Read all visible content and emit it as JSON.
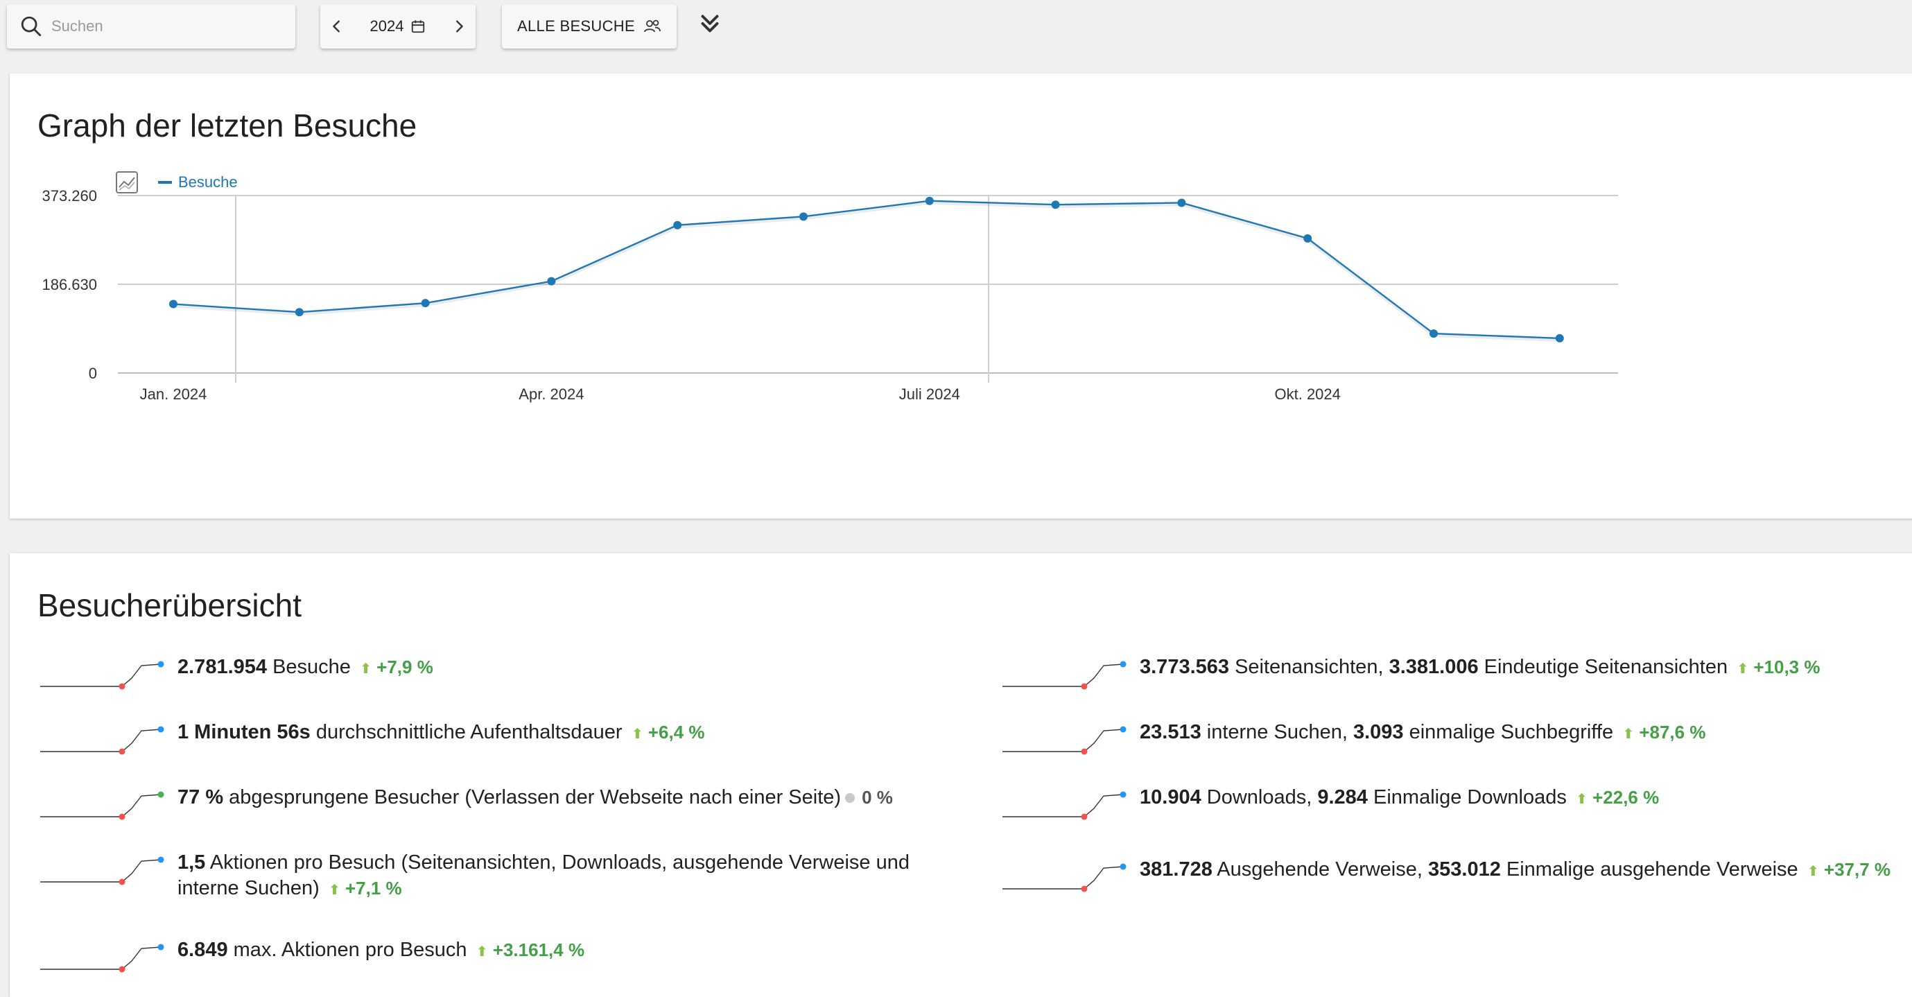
{
  "toolbar": {
    "search_placeholder": "Suchen",
    "year": "2024",
    "segment_label": "ALLE BESUCHE"
  },
  "graph": {
    "title": "Graph der letzten Besuche",
    "legend_label": "Besuche"
  },
  "chart_data": {
    "type": "line",
    "title": "Graph der letzten Besuche",
    "xlabel": "",
    "ylabel": "",
    "y_ticks": [
      "373.260",
      "186.630",
      "0"
    ],
    "ylim": [
      0,
      373260
    ],
    "x_tick_labels": [
      "Jan. 2024",
      "Apr. 2024",
      "Juli 2024",
      "Okt. 2024"
    ],
    "x": [
      "2024-01",
      "2024-02",
      "2024-03",
      "2024-04",
      "2024-05",
      "2024-06",
      "2024-07",
      "2024-08",
      "2024-09",
      "2024-10",
      "2024-11",
      "2024-12"
    ],
    "series": [
      {
        "name": "Besuche",
        "color": "#1f78b4",
        "values": [
          145000,
          128000,
          147000,
          193000,
          311000,
          329000,
          362000,
          354000,
          358000,
          283000,
          83000,
          73000
        ]
      }
    ],
    "grid": true,
    "legend": "top-left"
  },
  "overview": {
    "title": "Besucherübersicht",
    "left": [
      {
        "parts": [
          [
            "b",
            "2.781.954"
          ],
          [
            "t",
            " Besuche"
          ]
        ],
        "trend": "+7,9 %",
        "spark_color": "#2196f3"
      },
      {
        "parts": [
          [
            "b",
            "1 Minuten 56s"
          ],
          [
            "t",
            " durchschnittliche Aufenthaltsdauer"
          ]
        ],
        "trend": "+6,4 %",
        "spark_color": "#2196f3"
      },
      {
        "parts": [
          [
            "b",
            "77 %"
          ],
          [
            "t",
            " abgesprungene Besucher (Verlassen der Webseite nach einer Seite)"
          ]
        ],
        "neutral": "0 %",
        "spark_color": "#4caf50"
      },
      {
        "parts": [
          [
            "b",
            "1,5"
          ],
          [
            "t",
            " Aktionen pro Besuch (Seitenansichten, Downloads, ausgehende Verweise und interne Suchen)"
          ]
        ],
        "trend": "+7,1 %",
        "spark_color": "#2196f3"
      },
      {
        "parts": [
          [
            "b",
            "6.849"
          ],
          [
            "t",
            " max. Aktionen pro Besuch"
          ]
        ],
        "trend": "+3.161,4 %",
        "spark_color": "#2196f3"
      }
    ],
    "right": [
      {
        "parts": [
          [
            "b",
            "3.773.563"
          ],
          [
            "t",
            " Seitenansichten, "
          ],
          [
            "b",
            "3.381.006"
          ],
          [
            "t",
            " Eindeutige Seitenansichten"
          ]
        ],
        "trend": "+10,3 %",
        "spark_color": "#2196f3"
      },
      {
        "parts": [
          [
            "b",
            "23.513"
          ],
          [
            "t",
            " interne Suchen, "
          ],
          [
            "b",
            "3.093"
          ],
          [
            "t",
            " einmalige Suchbegriffe"
          ]
        ],
        "trend": "+87,6 %",
        "spark_color": "#2196f3"
      },
      {
        "parts": [
          [
            "b",
            "10.904"
          ],
          [
            "t",
            " Downloads, "
          ],
          [
            "b",
            "9.284"
          ],
          [
            "t",
            " Einmalige Downloads"
          ]
        ],
        "trend": "+22,6 %",
        "spark_color": "#2196f3"
      },
      {
        "parts": [
          [
            "b",
            "381.728"
          ],
          [
            "t",
            " Ausgehende Verweise, "
          ],
          [
            "b",
            "353.012"
          ],
          [
            "t",
            " Einmalige ausgehende Verweise"
          ]
        ],
        "trend": "+37,7 %",
        "spark_color": "#2196f3"
      }
    ]
  }
}
